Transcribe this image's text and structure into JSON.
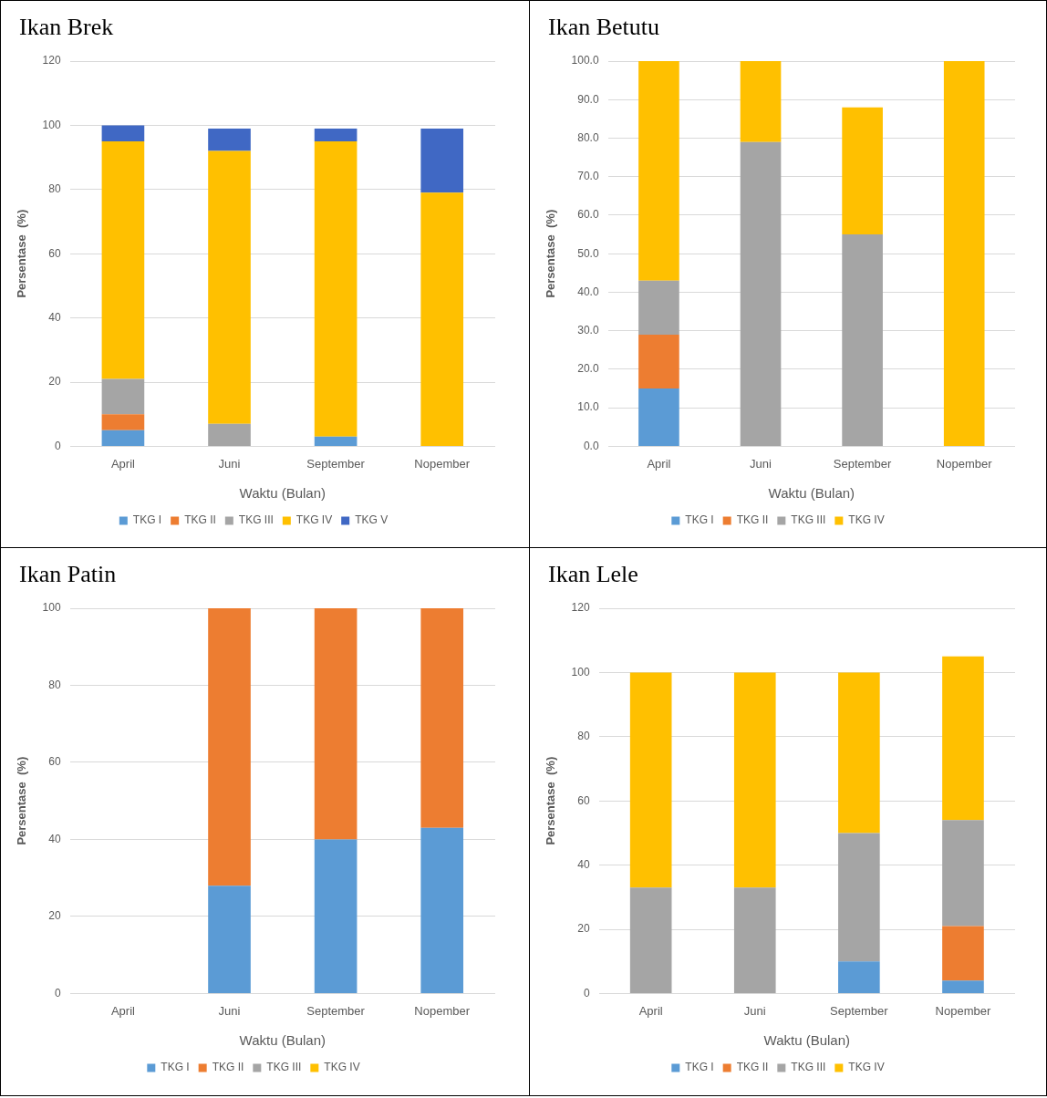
{
  "chart_data": [
    {
      "type": "bar",
      "title": "Ikan Brek",
      "xlabel": "Waktu (Bulan)",
      "ylabel": "Persentase  (%)",
      "stacked": true,
      "grid": "y",
      "legend": "bottom",
      "categories": [
        "April",
        "Juni",
        "September",
        "Nopember"
      ],
      "ylim": [
        0,
        120
      ],
      "yticks": [
        0,
        20,
        40,
        60,
        80,
        100,
        120
      ],
      "series": [
        {
          "name": "TKG I",
          "color": "#5b9bd5",
          "values": [
            5,
            0,
            3,
            0
          ]
        },
        {
          "name": "TKG II",
          "color": "#ed7d31",
          "values": [
            5,
            0,
            0,
            0
          ]
        },
        {
          "name": "TKG III",
          "color": "#a5a5a5",
          "values": [
            11,
            7,
            0,
            0
          ]
        },
        {
          "name": "TKG IV",
          "color": "#ffc000",
          "values": [
            74,
            85,
            92,
            79
          ]
        },
        {
          "name": "TKG V",
          "color": "#4068c4",
          "values": [
            5,
            7,
            4,
            20
          ]
        }
      ]
    },
    {
      "type": "bar",
      "title": "Ikan Betutu",
      "xlabel": "Waktu (Bulan)",
      "ylabel": "Persentase  (%)",
      "stacked": true,
      "grid": "y",
      "legend": "bottom",
      "categories": [
        "April",
        "Juni",
        "September",
        "Nopember"
      ],
      "ylim": [
        0,
        100
      ],
      "yticks": [
        {
          "value": 0,
          "label": "0.0"
        },
        {
          "value": 10,
          "label": "10.0"
        },
        {
          "value": 20,
          "label": "20.0"
        },
        {
          "value": 30,
          "label": "30.0"
        },
        {
          "value": 40,
          "label": "40.0"
        },
        {
          "value": 50,
          "label": "50.0"
        },
        {
          "value": 60,
          "label": "60.0"
        },
        {
          "value": 70,
          "label": "70.0"
        },
        {
          "value": 80,
          "label": "80.0"
        },
        {
          "value": 90,
          "label": "90.0"
        },
        {
          "value": 100,
          "label": "100.0"
        }
      ],
      "series": [
        {
          "name": "TKG I",
          "color": "#5b9bd5",
          "values": [
            15,
            0,
            0,
            0
          ]
        },
        {
          "name": "TKG II",
          "color": "#ed7d31",
          "values": [
            14,
            0,
            0,
            0
          ]
        },
        {
          "name": "TKG III",
          "color": "#a5a5a5",
          "values": [
            14,
            79,
            55,
            0
          ]
        },
        {
          "name": "TKG IV",
          "color": "#ffc000",
          "values": [
            57,
            21,
            33,
            100
          ]
        }
      ]
    },
    {
      "type": "bar",
      "title": "Ikan Patin",
      "xlabel": "Waktu (Bulan)",
      "ylabel": "Persentase  (%)",
      "stacked": true,
      "grid": "y",
      "legend": "bottom",
      "categories": [
        "April",
        "Juni",
        "September",
        "Nopember"
      ],
      "ylim": [
        0,
        100
      ],
      "yticks": [
        0,
        20,
        40,
        60,
        80,
        100
      ],
      "series": [
        {
          "name": "TKG I",
          "color": "#5b9bd5",
          "values": [
            0,
            28,
            40,
            43
          ]
        },
        {
          "name": "TKG II",
          "color": "#ed7d31",
          "values": [
            0,
            72,
            60,
            57
          ]
        },
        {
          "name": "TKG III",
          "color": "#a5a5a5",
          "values": [
            0,
            0,
            0,
            0
          ]
        },
        {
          "name": "TKG IV",
          "color": "#ffc000",
          "values": [
            0,
            0,
            0,
            0
          ]
        }
      ]
    },
    {
      "type": "bar",
      "title": "Ikan Lele",
      "xlabel": "Waktu (Bulan)",
      "ylabel": "Persentase  (%)",
      "stacked": true,
      "grid": "y",
      "legend": "bottom",
      "categories": [
        "April",
        "Juni",
        "September",
        "Nopember"
      ],
      "ylim": [
        0,
        120
      ],
      "yticks": [
        0,
        20,
        40,
        60,
        80,
        100,
        120
      ],
      "series": [
        {
          "name": "TKG I",
          "color": "#5b9bd5",
          "values": [
            0,
            0,
            10,
            4
          ]
        },
        {
          "name": "TKG II",
          "color": "#ed7d31",
          "values": [
            0,
            0,
            0,
            17
          ]
        },
        {
          "name": "TKG III",
          "color": "#a5a5a5",
          "values": [
            33,
            33,
            40,
            33
          ]
        },
        {
          "name": "TKG IV",
          "color": "#ffc000",
          "values": [
            67,
            67,
            50,
            51
          ]
        }
      ]
    }
  ]
}
